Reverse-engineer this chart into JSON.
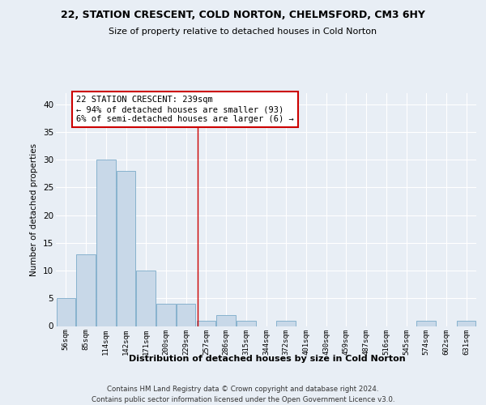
{
  "title1": "22, STATION CRESCENT, COLD NORTON, CHELMSFORD, CM3 6HY",
  "title2": "Size of property relative to detached houses in Cold Norton",
  "xlabel": "Distribution of detached houses by size in Cold Norton",
  "ylabel": "Number of detached properties",
  "bin_labels": [
    "56sqm",
    "85sqm",
    "114sqm",
    "142sqm",
    "171sqm",
    "200sqm",
    "229sqm",
    "257sqm",
    "286sqm",
    "315sqm",
    "344sqm",
    "372sqm",
    "401sqm",
    "430sqm",
    "459sqm",
    "487sqm",
    "516sqm",
    "545sqm",
    "574sqm",
    "602sqm",
    "631sqm"
  ],
  "bar_values": [
    5,
    13,
    30,
    28,
    10,
    4,
    4,
    1,
    2,
    1,
    0,
    1,
    0,
    0,
    0,
    0,
    0,
    0,
    1,
    0,
    1
  ],
  "bar_color": "#c8d8e8",
  "bar_edge_color": "#7aaac8",
  "vline_x": 6.6,
  "vline_color": "#cc0000",
  "annotation_line1": "22 STATION CRESCENT: 239sqm",
  "annotation_line2": "← 94% of detached houses are smaller (93)",
  "annotation_line3": "6% of semi-detached houses are larger (6) →",
  "annotation_box_color": "#ffffff",
  "annotation_box_edge_color": "#cc0000",
  "ylim": [
    0,
    42
  ],
  "yticks": [
    0,
    5,
    10,
    15,
    20,
    25,
    30,
    35,
    40
  ],
  "footer": "Contains HM Land Registry data © Crown copyright and database right 2024.\nContains public sector information licensed under the Open Government Licence v3.0.",
  "bg_color": "#e8eef5",
  "plot_bg_color": "#e8eef5",
  "grid_color": "#ffffff"
}
